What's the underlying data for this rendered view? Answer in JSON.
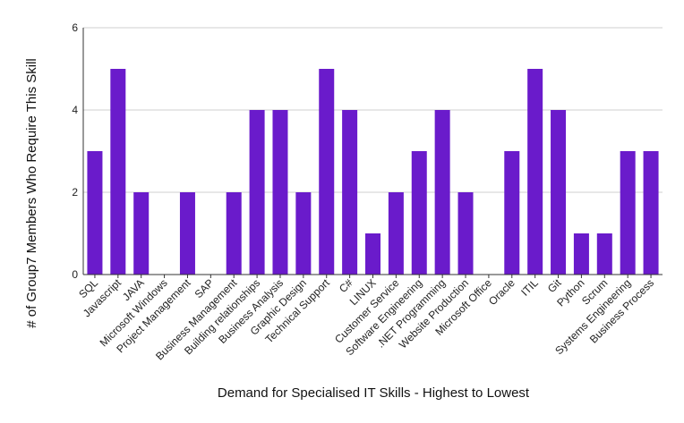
{
  "chart_data": {
    "type": "bar",
    "title": "",
    "xlabel": "Demand for Specialised IT Skills - Highest to Lowest",
    "ylabel": "# of Group7 Members Who Require This Skill",
    "ylim": [
      0,
      6
    ],
    "yticks": [
      0,
      2,
      4,
      6
    ],
    "grid": true,
    "legend": "none",
    "bar_color": "#6a1bcb",
    "categories": [
      "SQL",
      "Javascript",
      "JAVA",
      "Microsoft Windows",
      "Project Management",
      "SAP",
      "Business Management",
      "Building relationships",
      "Business Analysis",
      "Graphic Design",
      "Technical Support",
      "C#",
      "LINUX",
      "Customer Service",
      "Software Engineering",
      ".NET Programming",
      "Website Production",
      "Microsoft Office",
      "Oracle",
      "ITIL",
      "Git",
      "Python",
      "Scrum",
      "Systems Engineering",
      "Business Process"
    ],
    "values": [
      3,
      5,
      2,
      0,
      2,
      0,
      2,
      4,
      4,
      2,
      5,
      4,
      1,
      2,
      3,
      4,
      2,
      0,
      3,
      5,
      4,
      1,
      1,
      3,
      3
    ]
  }
}
